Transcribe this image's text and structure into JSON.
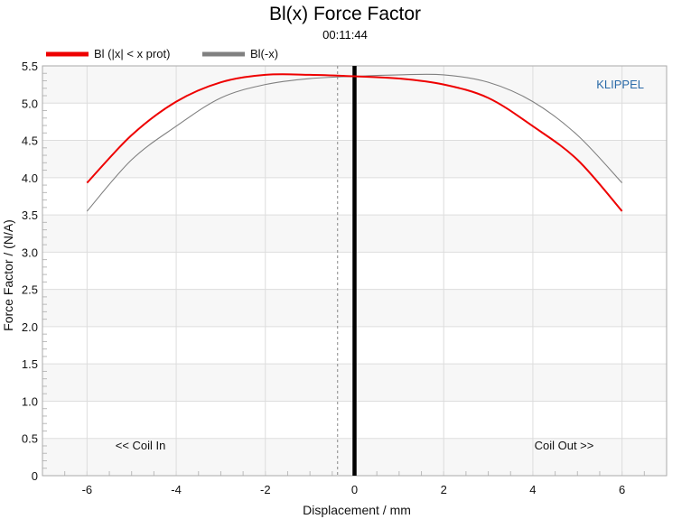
{
  "chart_data": {
    "type": "line",
    "title": "Bl(x) Force Factor",
    "subtitle": "00:11:44",
    "xlabel": "Displacement / mm",
    "ylabel": "Force Factor / (N/A)",
    "xlim": [
      -7,
      7
    ],
    "ylim": [
      0,
      5.5
    ],
    "xticks": [
      -6,
      -4,
      -2,
      0,
      2,
      4,
      6
    ],
    "yticks": [
      "0",
      "0.5",
      "1.0",
      "1.5",
      "2.0",
      "2.5",
      "3.0",
      "3.5",
      "4.0",
      "4.5",
      "5.0",
      "5.5"
    ],
    "grid": true,
    "legend_position": "top-left",
    "brand": "KLIPPEL",
    "annotations": [
      {
        "text": "<< Coil In",
        "x": -4.8,
        "y": 0.35
      },
      {
        "text": "Coil Out >>",
        "x": 4.7,
        "y": 0.35
      }
    ],
    "vertical_markers": [
      {
        "x": 0,
        "style": "solid",
        "color": "#000000"
      },
      {
        "x": -0.38,
        "style": "dashed",
        "color": "#888888"
      }
    ],
    "series": [
      {
        "name": "Bl (|x| < x prot)",
        "color": "#ee0000",
        "x": [
          -6,
          -5,
          -4,
          -3,
          -2,
          -1,
          0,
          1,
          2,
          3,
          4,
          5,
          6
        ],
        "y": [
          3.93,
          4.57,
          5.02,
          5.28,
          5.38,
          5.38,
          5.36,
          5.33,
          5.25,
          5.07,
          4.69,
          4.24,
          3.55
        ]
      },
      {
        "name": "Bl(-x)",
        "color": "#808080",
        "x": [
          -6,
          -5,
          -4,
          -3,
          -2,
          -1,
          0,
          1,
          2,
          3,
          4,
          5,
          6
        ],
        "y": [
          3.55,
          4.24,
          4.69,
          5.07,
          5.25,
          5.33,
          5.36,
          5.38,
          5.38,
          5.28,
          5.02,
          4.57,
          3.93
        ]
      }
    ]
  }
}
